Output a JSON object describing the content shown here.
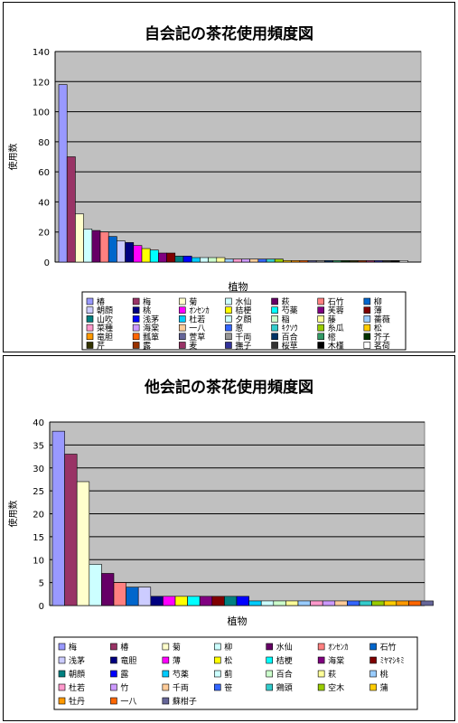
{
  "chart_data": [
    {
      "type": "bar",
      "title": "自会記の茶花使用頻度図",
      "xlabel": "植物",
      "ylabel": "使用数",
      "ylim": [
        0,
        140
      ],
      "yticks": [
        0,
        20,
        40,
        60,
        80,
        100,
        120,
        140
      ],
      "grid": true,
      "legend_position": "bottom",
      "series": [
        {
          "name": "椿",
          "value": 118,
          "color": "#9999ff"
        },
        {
          "name": "梅",
          "value": 70,
          "color": "#993366"
        },
        {
          "name": "菊",
          "value": 32,
          "color": "#ffffcc"
        },
        {
          "name": "水仙",
          "value": 22,
          "color": "#ccffff"
        },
        {
          "name": "萩",
          "value": 21,
          "color": "#660066"
        },
        {
          "name": "石竹",
          "value": 20,
          "color": "#ff8080"
        },
        {
          "name": "柳",
          "value": 17,
          "color": "#0066cc"
        },
        {
          "name": "朝顔",
          "value": 14,
          "color": "#ccccff"
        },
        {
          "name": "桃",
          "value": 13,
          "color": "#000080"
        },
        {
          "name": "ｵﾝｾﾝｶ",
          "value": 11,
          "color": "#ff00ff"
        },
        {
          "name": "桔梗",
          "value": 9,
          "color": "#ffff00"
        },
        {
          "name": "芍薬",
          "value": 8,
          "color": "#00ffff"
        },
        {
          "name": "芙蓉",
          "value": 6,
          "color": "#800080"
        },
        {
          "name": "薄",
          "value": 6,
          "color": "#800000"
        },
        {
          "name": "山吹",
          "value": 4,
          "color": "#008080"
        },
        {
          "name": "浅茅",
          "value": 4,
          "color": "#0000ff"
        },
        {
          "name": "杜若",
          "value": 3,
          "color": "#00ccff"
        },
        {
          "name": "夕顔",
          "value": 3,
          "color": "#ccffff"
        },
        {
          "name": "稲",
          "value": 3,
          "color": "#ccffcc"
        },
        {
          "name": "藤",
          "value": 3,
          "color": "#ffff99"
        },
        {
          "name": "薔薇",
          "value": 2,
          "color": "#99ccff"
        },
        {
          "name": "菜種",
          "value": 2,
          "color": "#ff99cc"
        },
        {
          "name": "海棠",
          "value": 2,
          "color": "#cc99ff"
        },
        {
          "name": "一八",
          "value": 2,
          "color": "#ffcc99"
        },
        {
          "name": "葱",
          "value": 2,
          "color": "#3366ff"
        },
        {
          "name": "ｷｸｿｳ",
          "value": 2,
          "color": "#33cccc"
        },
        {
          "name": "糸瓜",
          "value": 2,
          "color": "#99cc00"
        },
        {
          "name": "松",
          "value": 1,
          "color": "#ffcc00"
        },
        {
          "name": "竜胆",
          "value": 1,
          "color": "#ff9900"
        },
        {
          "name": "瓢箪",
          "value": 1,
          "color": "#ff6600"
        },
        {
          "name": "萱草",
          "value": 1,
          "color": "#666699"
        },
        {
          "name": "千両",
          "value": 1,
          "color": "#969696"
        },
        {
          "name": "百合",
          "value": 1,
          "color": "#003366"
        },
        {
          "name": "樒",
          "value": 1,
          "color": "#339966"
        },
        {
          "name": "芥子",
          "value": 1,
          "color": "#003300"
        },
        {
          "name": "芹",
          "value": 1,
          "color": "#333300"
        },
        {
          "name": "露",
          "value": 1,
          "color": "#993300"
        },
        {
          "name": "麦",
          "value": 1,
          "color": "#993366"
        },
        {
          "name": "撫子",
          "value": 1,
          "color": "#333399"
        },
        {
          "name": "桜草",
          "value": 1,
          "color": "#333333"
        },
        {
          "name": "木槿",
          "value": 1,
          "color": "#000000"
        },
        {
          "name": "茗荷",
          "value": 1,
          "color": "#ffffff"
        }
      ]
    },
    {
      "type": "bar",
      "title": "他会記の茶花使用頻度図",
      "xlabel": "植物",
      "ylabel": "使用数",
      "ylim": [
        0,
        40
      ],
      "yticks": [
        0,
        5,
        10,
        15,
        20,
        25,
        30,
        35,
        40
      ],
      "grid": true,
      "legend_position": "bottom",
      "series": [
        {
          "name": "梅",
          "value": 38,
          "color": "#9999ff"
        },
        {
          "name": "椿",
          "value": 33,
          "color": "#993366"
        },
        {
          "name": "菊",
          "value": 27,
          "color": "#ffffcc"
        },
        {
          "name": "柳",
          "value": 9,
          "color": "#ccffff"
        },
        {
          "name": "水仙",
          "value": 7,
          "color": "#660066"
        },
        {
          "name": "ｵﾝｾﾝｶ",
          "value": 5,
          "color": "#ff8080"
        },
        {
          "name": "石竹",
          "value": 4,
          "color": "#0066cc"
        },
        {
          "name": "浅茅",
          "value": 4,
          "color": "#ccccff"
        },
        {
          "name": "竜胆",
          "value": 2,
          "color": "#000080"
        },
        {
          "name": "薄",
          "value": 2,
          "color": "#ff00ff"
        },
        {
          "name": "松",
          "value": 2,
          "color": "#ffff00"
        },
        {
          "name": "桔梗",
          "value": 2,
          "color": "#00ffff"
        },
        {
          "name": "海棠",
          "value": 2,
          "color": "#800080"
        },
        {
          "name": "ﾐﾔﾏｼｷﾐ",
          "value": 2,
          "color": "#800000"
        },
        {
          "name": "朝顔",
          "value": 2,
          "color": "#008080"
        },
        {
          "name": "露",
          "value": 2,
          "color": "#0000ff"
        },
        {
          "name": "芍薬",
          "value": 1,
          "color": "#00ccff"
        },
        {
          "name": "蓟",
          "value": 1,
          "color": "#ccffff"
        },
        {
          "name": "百合",
          "value": 1,
          "color": "#ccffcc"
        },
        {
          "name": "萩",
          "value": 1,
          "color": "#ffff99"
        },
        {
          "name": "桃",
          "value": 1,
          "color": "#99ccff"
        },
        {
          "name": "杜若",
          "value": 1,
          "color": "#ff99cc"
        },
        {
          "name": "竹",
          "value": 1,
          "color": "#cc99ff"
        },
        {
          "name": "千両",
          "value": 1,
          "color": "#ffcc99"
        },
        {
          "name": "笹",
          "value": 1,
          "color": "#3366ff"
        },
        {
          "name": "鶏頭",
          "value": 1,
          "color": "#33cccc"
        },
        {
          "name": "空木",
          "value": 1,
          "color": "#99cc00"
        },
        {
          "name": "蒲",
          "value": 1,
          "color": "#ffcc00"
        },
        {
          "name": "牡丹",
          "value": 1,
          "color": "#ff9900"
        },
        {
          "name": "一八",
          "value": 1,
          "color": "#ff6600"
        },
        {
          "name": "蘇柑子",
          "value": 1,
          "color": "#666699"
        }
      ]
    }
  ]
}
